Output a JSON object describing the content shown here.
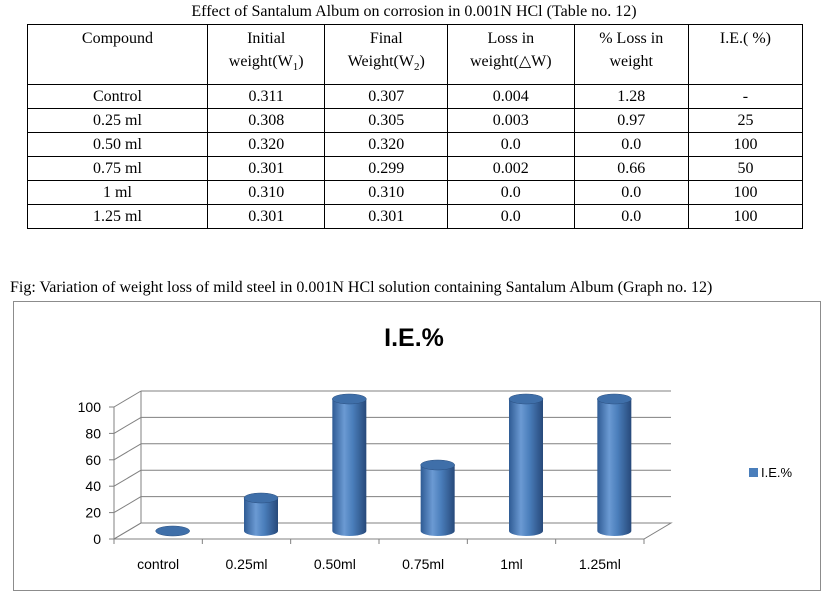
{
  "table": {
    "caption": "Effect of Santalum Album on corrosion in 0.001N HCl (Table no. 12)",
    "headers": [
      {
        "line1": "Compound",
        "line2": ""
      },
      {
        "line1": "Initial",
        "line2": "weight(W1)"
      },
      {
        "line1": "Final",
        "line2": "Weight(W2)"
      },
      {
        "line1": "Loss in",
        "line2": "weight(△W)"
      },
      {
        "line1": "% Loss in",
        "line2": "weight"
      },
      {
        "line1": "I.E.( %)",
        "line2": ""
      }
    ],
    "rows": [
      [
        "Control",
        "0.311",
        "0.307",
        "0.004",
        "1.28",
        "-"
      ],
      [
        "0.25 ml",
        "0.308",
        "0.305",
        "0.003",
        "0.97",
        "25"
      ],
      [
        "0.50 ml",
        "0.320",
        "0.320",
        "0.0",
        "0.0",
        "100"
      ],
      [
        "0.75 ml",
        "0.301",
        "0.299",
        "0.002",
        "0.66",
        "50"
      ],
      [
        "1 ml",
        "0.310",
        "0.310",
        "0.0",
        "0.0",
        "100"
      ],
      [
        "1.25 ml",
        "0.301",
        "0.301",
        "0.0",
        "0.0",
        "100"
      ]
    ]
  },
  "figure": {
    "caption": "Fig: Variation of weight loss of mild steel in 0.001N HCl solution containing Santalum Album (Graph no. 12)"
  },
  "chart_data": {
    "type": "bar",
    "style": "3d-cylinder",
    "title": "I.E.%",
    "xlabel": "",
    "ylabel": "",
    "categories": [
      "control",
      "0.25ml",
      "0.50ml",
      "0.75ml",
      "1ml",
      "1.25ml"
    ],
    "series": [
      {
        "name": "I.E.%",
        "values": [
          0,
          25,
          100,
          50,
          100,
          100
        ],
        "color": "#4a7ebb"
      }
    ],
    "ylim": [
      0,
      100
    ],
    "yticks": [
      "0",
      "20",
      "40",
      "60",
      "80",
      "100"
    ],
    "grid": true,
    "legend": "right"
  }
}
